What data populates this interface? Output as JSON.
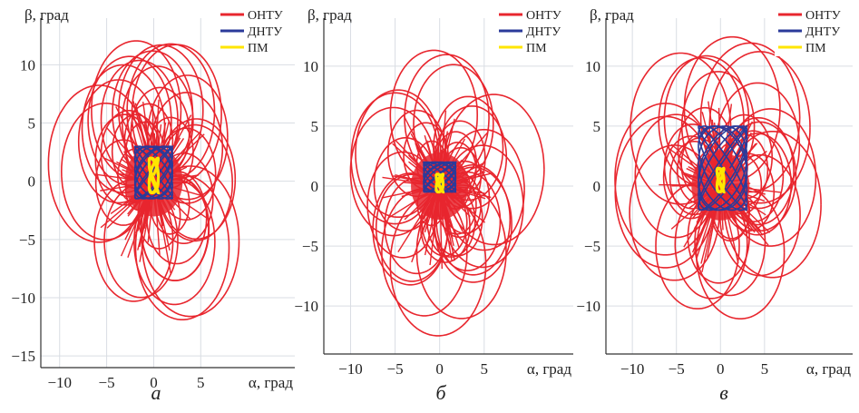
{
  "colors": {
    "onty": "#e8262e",
    "dnty": "#2a3a9a",
    "pm": "#ffe600",
    "grid": "#d9dde3",
    "axis": "#333333"
  },
  "chart_data": [
    {
      "type": "line",
      "caption": "а",
      "xlabel": "α, град",
      "ylabel": "β, град",
      "xlim": [
        -12,
        15
      ],
      "ylim": [
        -16,
        14
      ],
      "xticks": [
        "−10",
        "−5",
        "0",
        "5"
      ],
      "yticks": [
        "10",
        "5",
        "0",
        "−5",
        "−10",
        "−15"
      ],
      "xtick_values": [
        -10,
        -5,
        0,
        5
      ],
      "ytick_values": [
        10,
        5,
        0,
        -5,
        -10,
        -15
      ],
      "grid": true,
      "legend_position": "top-right",
      "series": [
        {
          "name": "ОНТУ",
          "x_range": [
            -10.5,
            11.5
          ],
          "y_range": [
            -14.5,
            13
          ]
        },
        {
          "name": "ДНТУ",
          "x_range": [
            -2,
            2
          ],
          "y_range": [
            -1.5,
            3
          ]
        },
        {
          "name": "ПМ",
          "x_range": [
            -0.5,
            0.5
          ],
          "y_range": [
            -1,
            2
          ]
        }
      ]
    },
    {
      "type": "line",
      "caption": "б",
      "xlabel": "α, град",
      "ylabel": "β, град",
      "xlim": [
        -13,
        15
      ],
      "ylim": [
        -14,
        14
      ],
      "xticks": [
        "−10",
        "−5",
        "0",
        "5"
      ],
      "yticks": [
        "10",
        "5",
        "0",
        "−5",
        "−10"
      ],
      "xtick_values": [
        -10,
        -5,
        0,
        5
      ],
      "ytick_values": [
        10,
        5,
        0,
        -5,
        -10
      ],
      "grid": true,
      "legend_position": "top-right",
      "series": [
        {
          "name": "ОНТУ",
          "x_range": [
            -11.5,
            11.5
          ],
          "y_range": [
            -12.5,
            13
          ]
        },
        {
          "name": "ДНТУ",
          "x_range": [
            -1.8,
            1.8
          ],
          "y_range": [
            -0.5,
            2
          ]
        },
        {
          "name": "ПМ",
          "x_range": [
            -0.4,
            0.4
          ],
          "y_range": [
            -0.5,
            1
          ]
        }
      ]
    },
    {
      "type": "line",
      "caption": "в",
      "xlabel": "α, град",
      "ylabel": "β, град",
      "xlim": [
        -13,
        15
      ],
      "ylim": [
        -14,
        14
      ],
      "xticks": [
        "−10",
        "−5",
        "0",
        "5"
      ],
      "yticks": [
        "10",
        "5",
        "0",
        "−5",
        "−10"
      ],
      "xtick_values": [
        -10,
        -5,
        0,
        5
      ],
      "ytick_values": [
        10,
        5,
        0,
        -5,
        -10
      ],
      "grid": true,
      "legend_position": "top-right",
      "series": [
        {
          "name": "ОНТУ",
          "x_range": [
            -11.5,
            12
          ],
          "y_range": [
            -12.5,
            13.5
          ]
        },
        {
          "name": "ДНТУ",
          "x_range": [
            -2.5,
            3
          ],
          "y_range": [
            -2,
            5
          ]
        },
        {
          "name": "ПМ",
          "x_range": [
            -0.4,
            0.4
          ],
          "y_range": [
            -0.5,
            1.5
          ]
        }
      ]
    }
  ]
}
